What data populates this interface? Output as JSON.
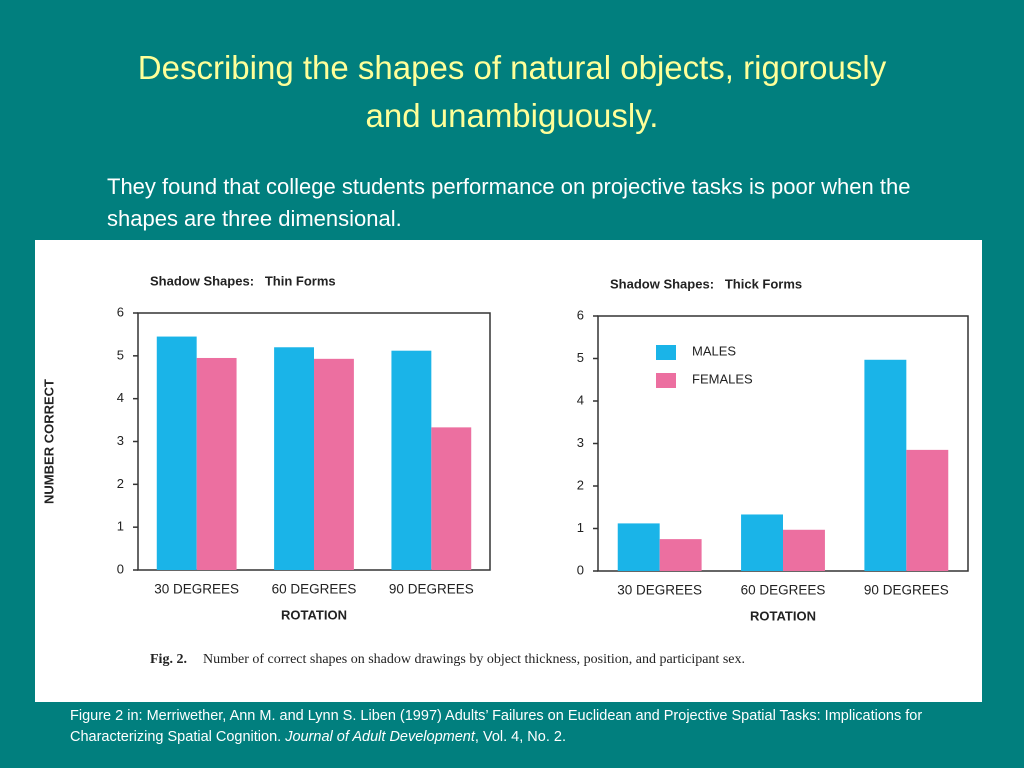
{
  "slide_title": "Describing the shapes of natural objects, rigorously and unambiguously.",
  "body_text": "They found that  college students performance on projective tasks is poor when the shapes are three dimensional.",
  "figure_caption": {
    "label": "Fig. 2.",
    "text": "Number of correct shapes on shadow drawings by object thickness, position, and participant sex."
  },
  "citation": [
    "Figure 2  in: Merriwether, Ann M. and Lynn S. Liben (1997) Adults’ Failures on Euclidean and Projective Spatial Tasks: Implications for Characterizing Spatial Cognition.",
    "Journal of Adult Development",
    ", Vol. 4, No. 2."
  ],
  "chart_data": [
    {
      "type": "bar",
      "title": "Shadow Shapes:   Thin Forms",
      "x_label": "ROTATION",
      "y_label": "NUMBER CORRECT",
      "categories": [
        "30 DEGREES",
        "60 DEGREES",
        "90 DEGREES"
      ],
      "series": [
        {
          "color": "#1ab4e8",
          "values": [
            5.45,
            5.2,
            5.12
          ]
        },
        {
          "color": "#ec6fa0",
          "values": [
            4.95,
            4.93,
            3.33
          ]
        }
      ],
      "ylim": [
        0,
        6
      ],
      "yticks": [
        0,
        1,
        2,
        3,
        4,
        5,
        6
      ]
    },
    {
      "type": "bar",
      "title": "Shadow Shapes:   Thick Forms",
      "x_label": "ROTATION",
      "categories": [
        "30 DEGREES",
        "60 DEGREES",
        "90 DEGREES"
      ],
      "series": [
        {
          "name": "MALES",
          "color": "#1ab4e8",
          "values": [
            1.12,
            1.33,
            4.97
          ]
        },
        {
          "name": "FEMALES",
          "color": "#ec6fa0",
          "values": [
            0.75,
            0.97,
            2.85
          ]
        }
      ],
      "ylim": [
        0,
        6
      ],
      "yticks": [
        0,
        1,
        2,
        3,
        4,
        5,
        6
      ],
      "legend": "upper left"
    }
  ]
}
